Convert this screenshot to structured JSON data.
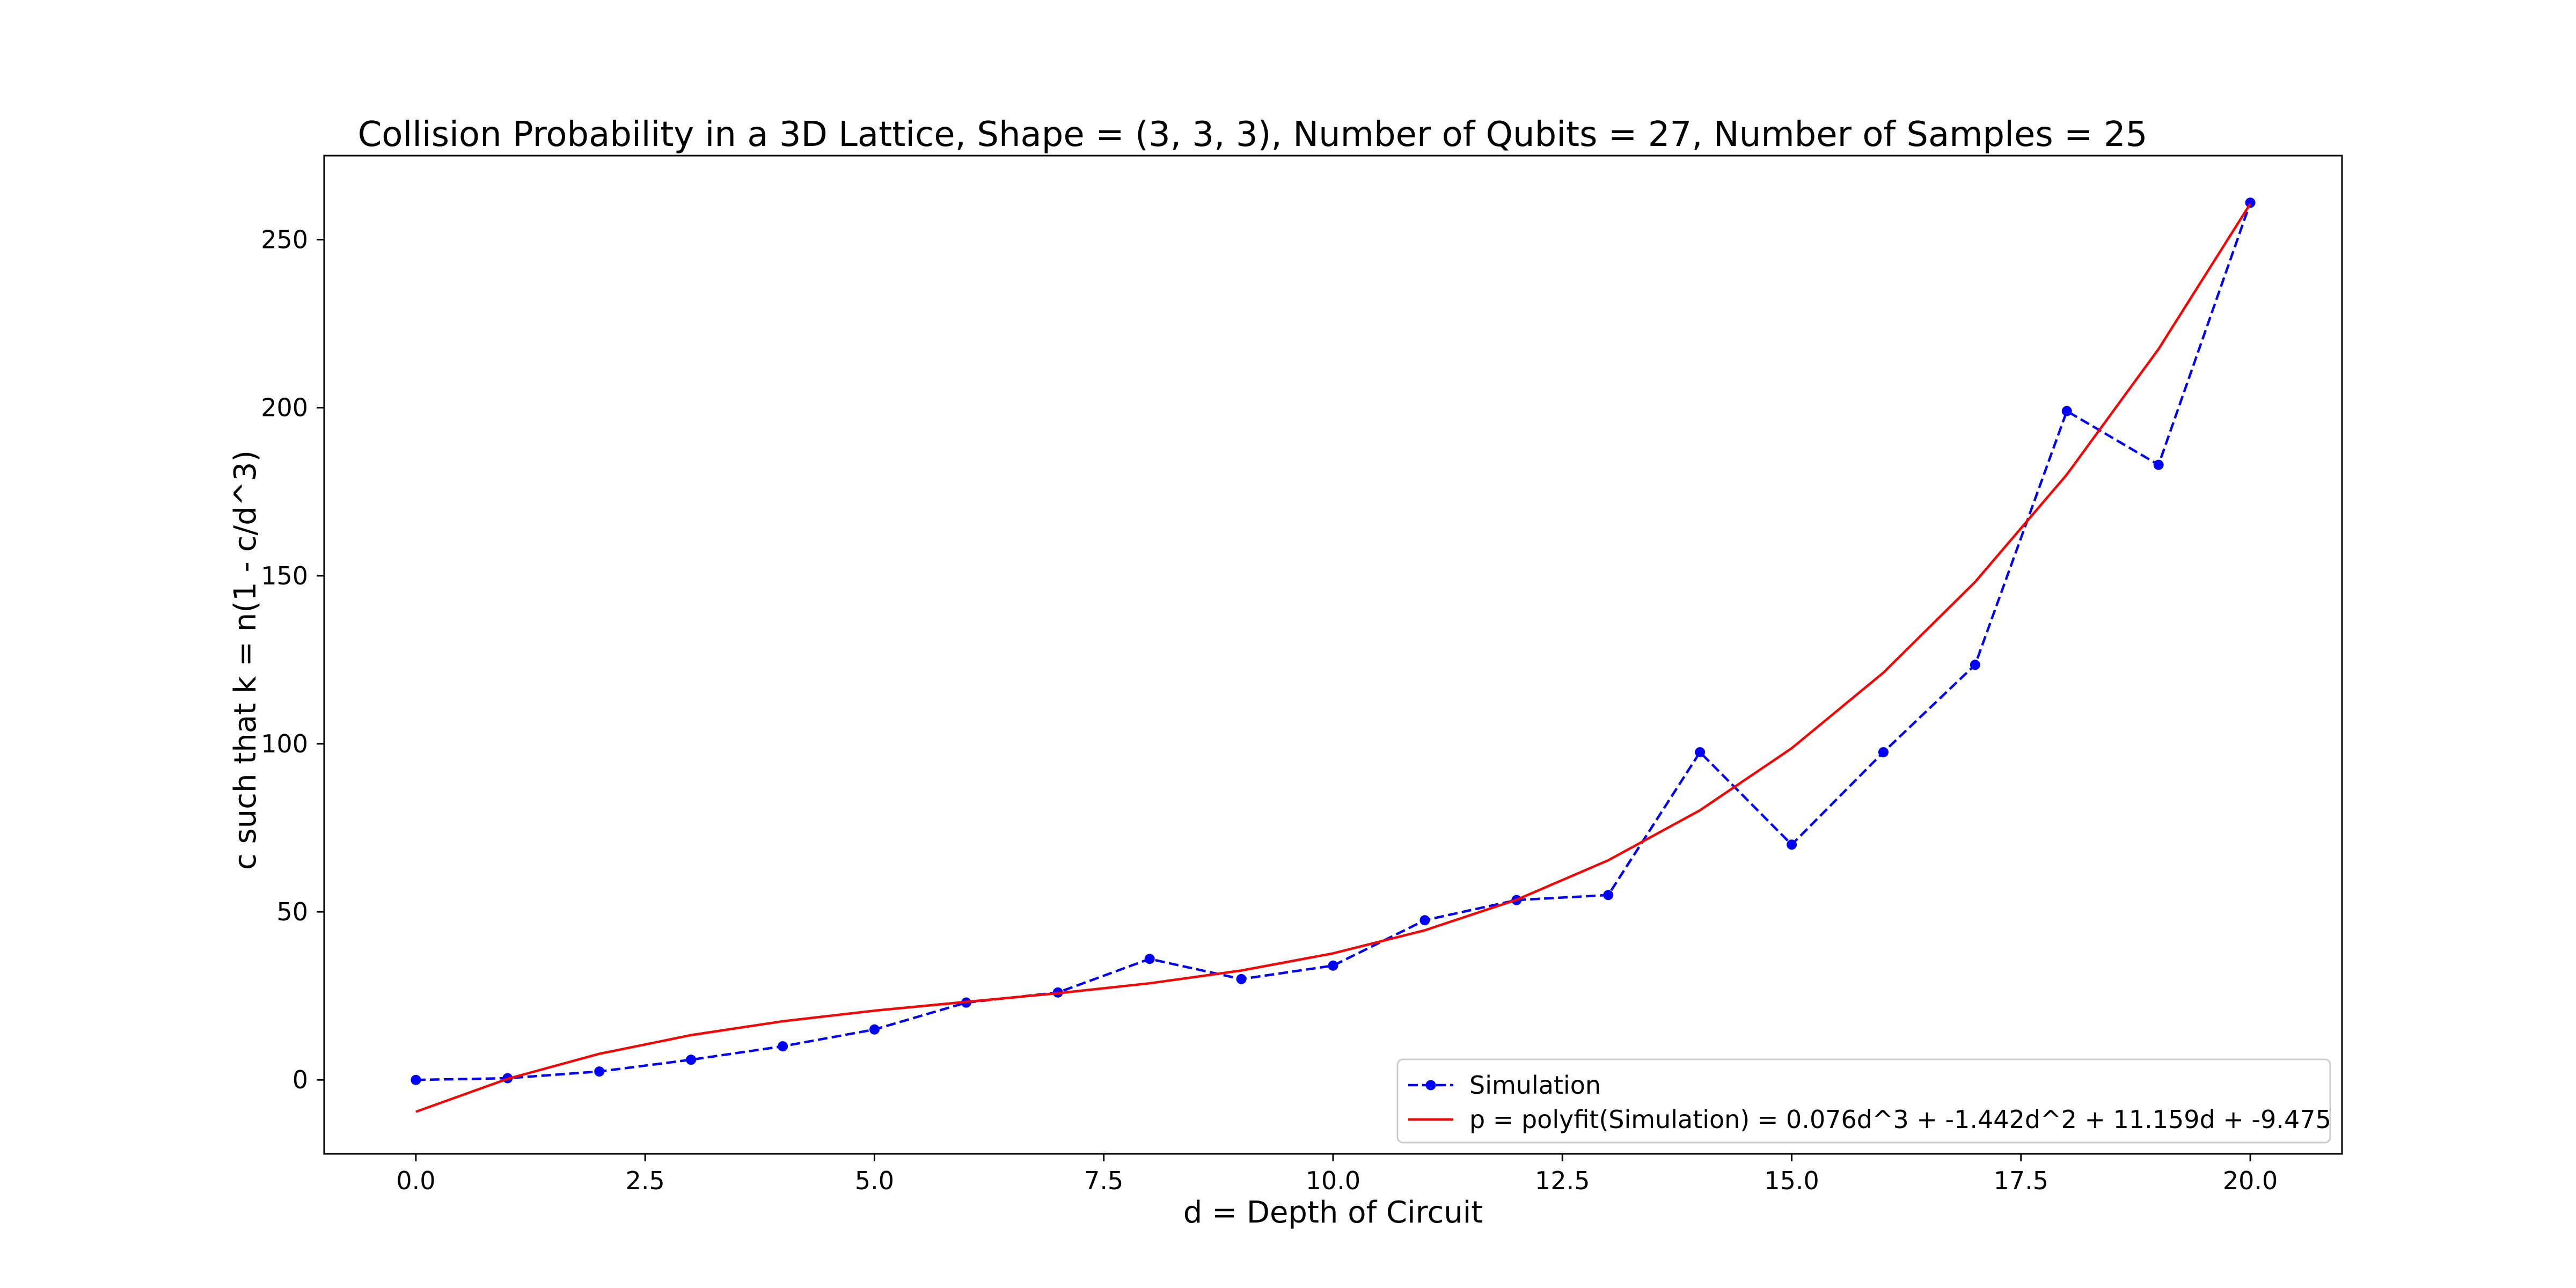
{
  "chart_data": {
    "type": "line",
    "title": "Collision Probability in a 3D Lattice, Shape = (3, 3, 3), Number of Qubits = 27, Number of Samples = 25",
    "xlabel": "d = Depth of Circuit",
    "ylabel": "c such that k = n(1 - c/d^3)",
    "xlim": [
      -1.0,
      21.0
    ],
    "ylim": [
      -22,
      275
    ],
    "xticks": [
      0.0,
      2.5,
      5.0,
      7.5,
      10.0,
      12.5,
      15.0,
      17.5,
      20.0
    ],
    "xtick_labels": [
      "0.0",
      "2.5",
      "5.0",
      "7.5",
      "10.0",
      "12.5",
      "15.0",
      "17.5",
      "20.0"
    ],
    "yticks": [
      0,
      50,
      100,
      150,
      200,
      250
    ],
    "ytick_labels": [
      "0",
      "50",
      "100",
      "150",
      "200",
      "250"
    ],
    "grid": false,
    "legend_position": "lower-right",
    "x": [
      0,
      1,
      2,
      3,
      4,
      5,
      6,
      7,
      8,
      9,
      10,
      11,
      12,
      13,
      14,
      15,
      16,
      17,
      18,
      19,
      20
    ],
    "series": [
      {
        "name": "Simulation",
        "style": "dashed-with-markers",
        "color": "#0000ff",
        "values": [
          0,
          0.5,
          2.5,
          6,
          10,
          15,
          23,
          26,
          36,
          30,
          34,
          47.5,
          53.5,
          55,
          97.5,
          70,
          97.5,
          123.5,
          199,
          183,
          261
        ]
      },
      {
        "name": "p = polyfit(Simulation) = 0.076d^3 + -1.442d^2 + 11.159d + -9.475",
        "style": "solid",
        "color": "#ff0000",
        "values": [
          -9.475,
          0.318,
          7.766,
          13.325,
          17.451,
          20.6,
          23.228,
          25.791,
          28.745,
          32.546,
          37.65,
          44.513,
          53.591,
          65.34,
          80.216,
          98.675,
          121.173,
          148.166,
          180.11,
          217.461,
          260.675
        ]
      }
    ]
  }
}
